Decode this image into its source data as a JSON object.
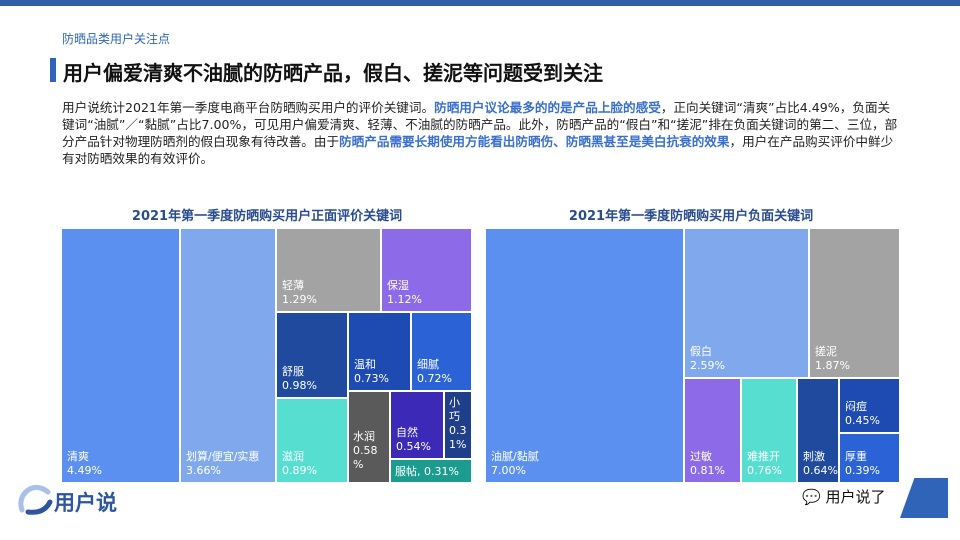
{
  "header": {
    "section": "防晒品类用户关注点",
    "title": "用户偏爱清爽不油腻的防晒产品，假白、搓泥等问题受到关注"
  },
  "intro": {
    "p1": "用户说统计2021年第一季度电商平台防晒购买用户的评价关键词。",
    "h1": "防晒用户议论最多的的是产品上脸的感受",
    "p2": "，正向关键词“清爽”占比4.49%，负面关键词“油腻”／“黏腻”占比7.00%，可见用户偏爱清爽、轻薄、不油腻的防晒产品。此外，防晒产品的“假白”和“搓泥”排在负面关键词的第二、三位，部分产品针对物理防晒剂的假白现象有待改善。由于",
    "h2": "防晒产品需要长期使用方能看出防晒伤、防晒黑甚至是美白抗衰的效果",
    "p3": "，用户在产品购买评价中鲜少有对防晒效果的有效评价。"
  },
  "chart_data": [
    {
      "type": "treemap",
      "title": "2021年第一季度防晒购买用户正面评价关键词",
      "unit": "%",
      "items": [
        {
          "label": "清爽",
          "display": "4.49%",
          "value": 4.49,
          "color": "#5b8ff0"
        },
        {
          "label": "划算/便宜/实惠",
          "display": "3.66%",
          "value": 3.66,
          "color": "#7fa9ec"
        },
        {
          "label": "轻薄",
          "display": "1.29%",
          "value": 1.29,
          "color": "#a3a3a3"
        },
        {
          "label": "保湿",
          "display": "1.12%",
          "value": 1.12,
          "color": "#8c6ae8"
        },
        {
          "label": "舒服",
          "display": "0.98%",
          "value": 0.98,
          "color": "#1f4a9e"
        },
        {
          "label": "温和",
          "display": "0.73%",
          "value": 0.73,
          "color": "#1d4bb1"
        },
        {
          "label": "细腻",
          "display": "0.72%",
          "value": 0.72,
          "color": "#2b63d6"
        },
        {
          "label": "滋润",
          "display": "0.89%",
          "value": 0.89,
          "color": "#56ded0"
        },
        {
          "label": "水润",
          "display": "0.58%",
          "value": 0.58,
          "color": "#5a5a5a"
        },
        {
          "label": "自然",
          "display": "0.54%",
          "value": 0.54,
          "color": "#3c29b8"
        },
        {
          "label": "小巧",
          "display": "0.31%",
          "value": 0.31,
          "color": "#1f3f8a"
        },
        {
          "label": "服帖",
          "display": "0.31%",
          "value": 0.31,
          "color": "#1c9c8e"
        }
      ]
    },
    {
      "type": "treemap",
      "title": "2021年第一季度防晒购买用户负面关键词",
      "unit": "%",
      "items": [
        {
          "label": "油腻/黏腻",
          "display": "7.00%",
          "value": 7.0,
          "color": "#5b8ff0"
        },
        {
          "label": "假白",
          "display": "2.59%",
          "value": 2.59,
          "color": "#7fa9ec"
        },
        {
          "label": "搓泥",
          "display": "1.87%",
          "value": 1.87,
          "color": "#a3a3a3"
        },
        {
          "label": "过敏",
          "display": "0.81%",
          "value": 0.81,
          "color": "#8c6ae8"
        },
        {
          "label": "难推开",
          "display": "0.76%",
          "value": 0.76,
          "color": "#56ded0"
        },
        {
          "label": "刺激",
          "display": "0.64%",
          "value": 0.64,
          "color": "#1f4a9e"
        },
        {
          "label": "闷痘",
          "display": "0.45%",
          "value": 0.45,
          "color": "#1d4bb1"
        },
        {
          "label": "厚重",
          "display": "0.39%",
          "value": 0.39,
          "color": "#2b63d6"
        }
      ]
    }
  ],
  "footer": {
    "logo_text": "用户说",
    "wechat_text": "用户说了",
    "wechat_icon": "chat-bubbles-icon"
  }
}
